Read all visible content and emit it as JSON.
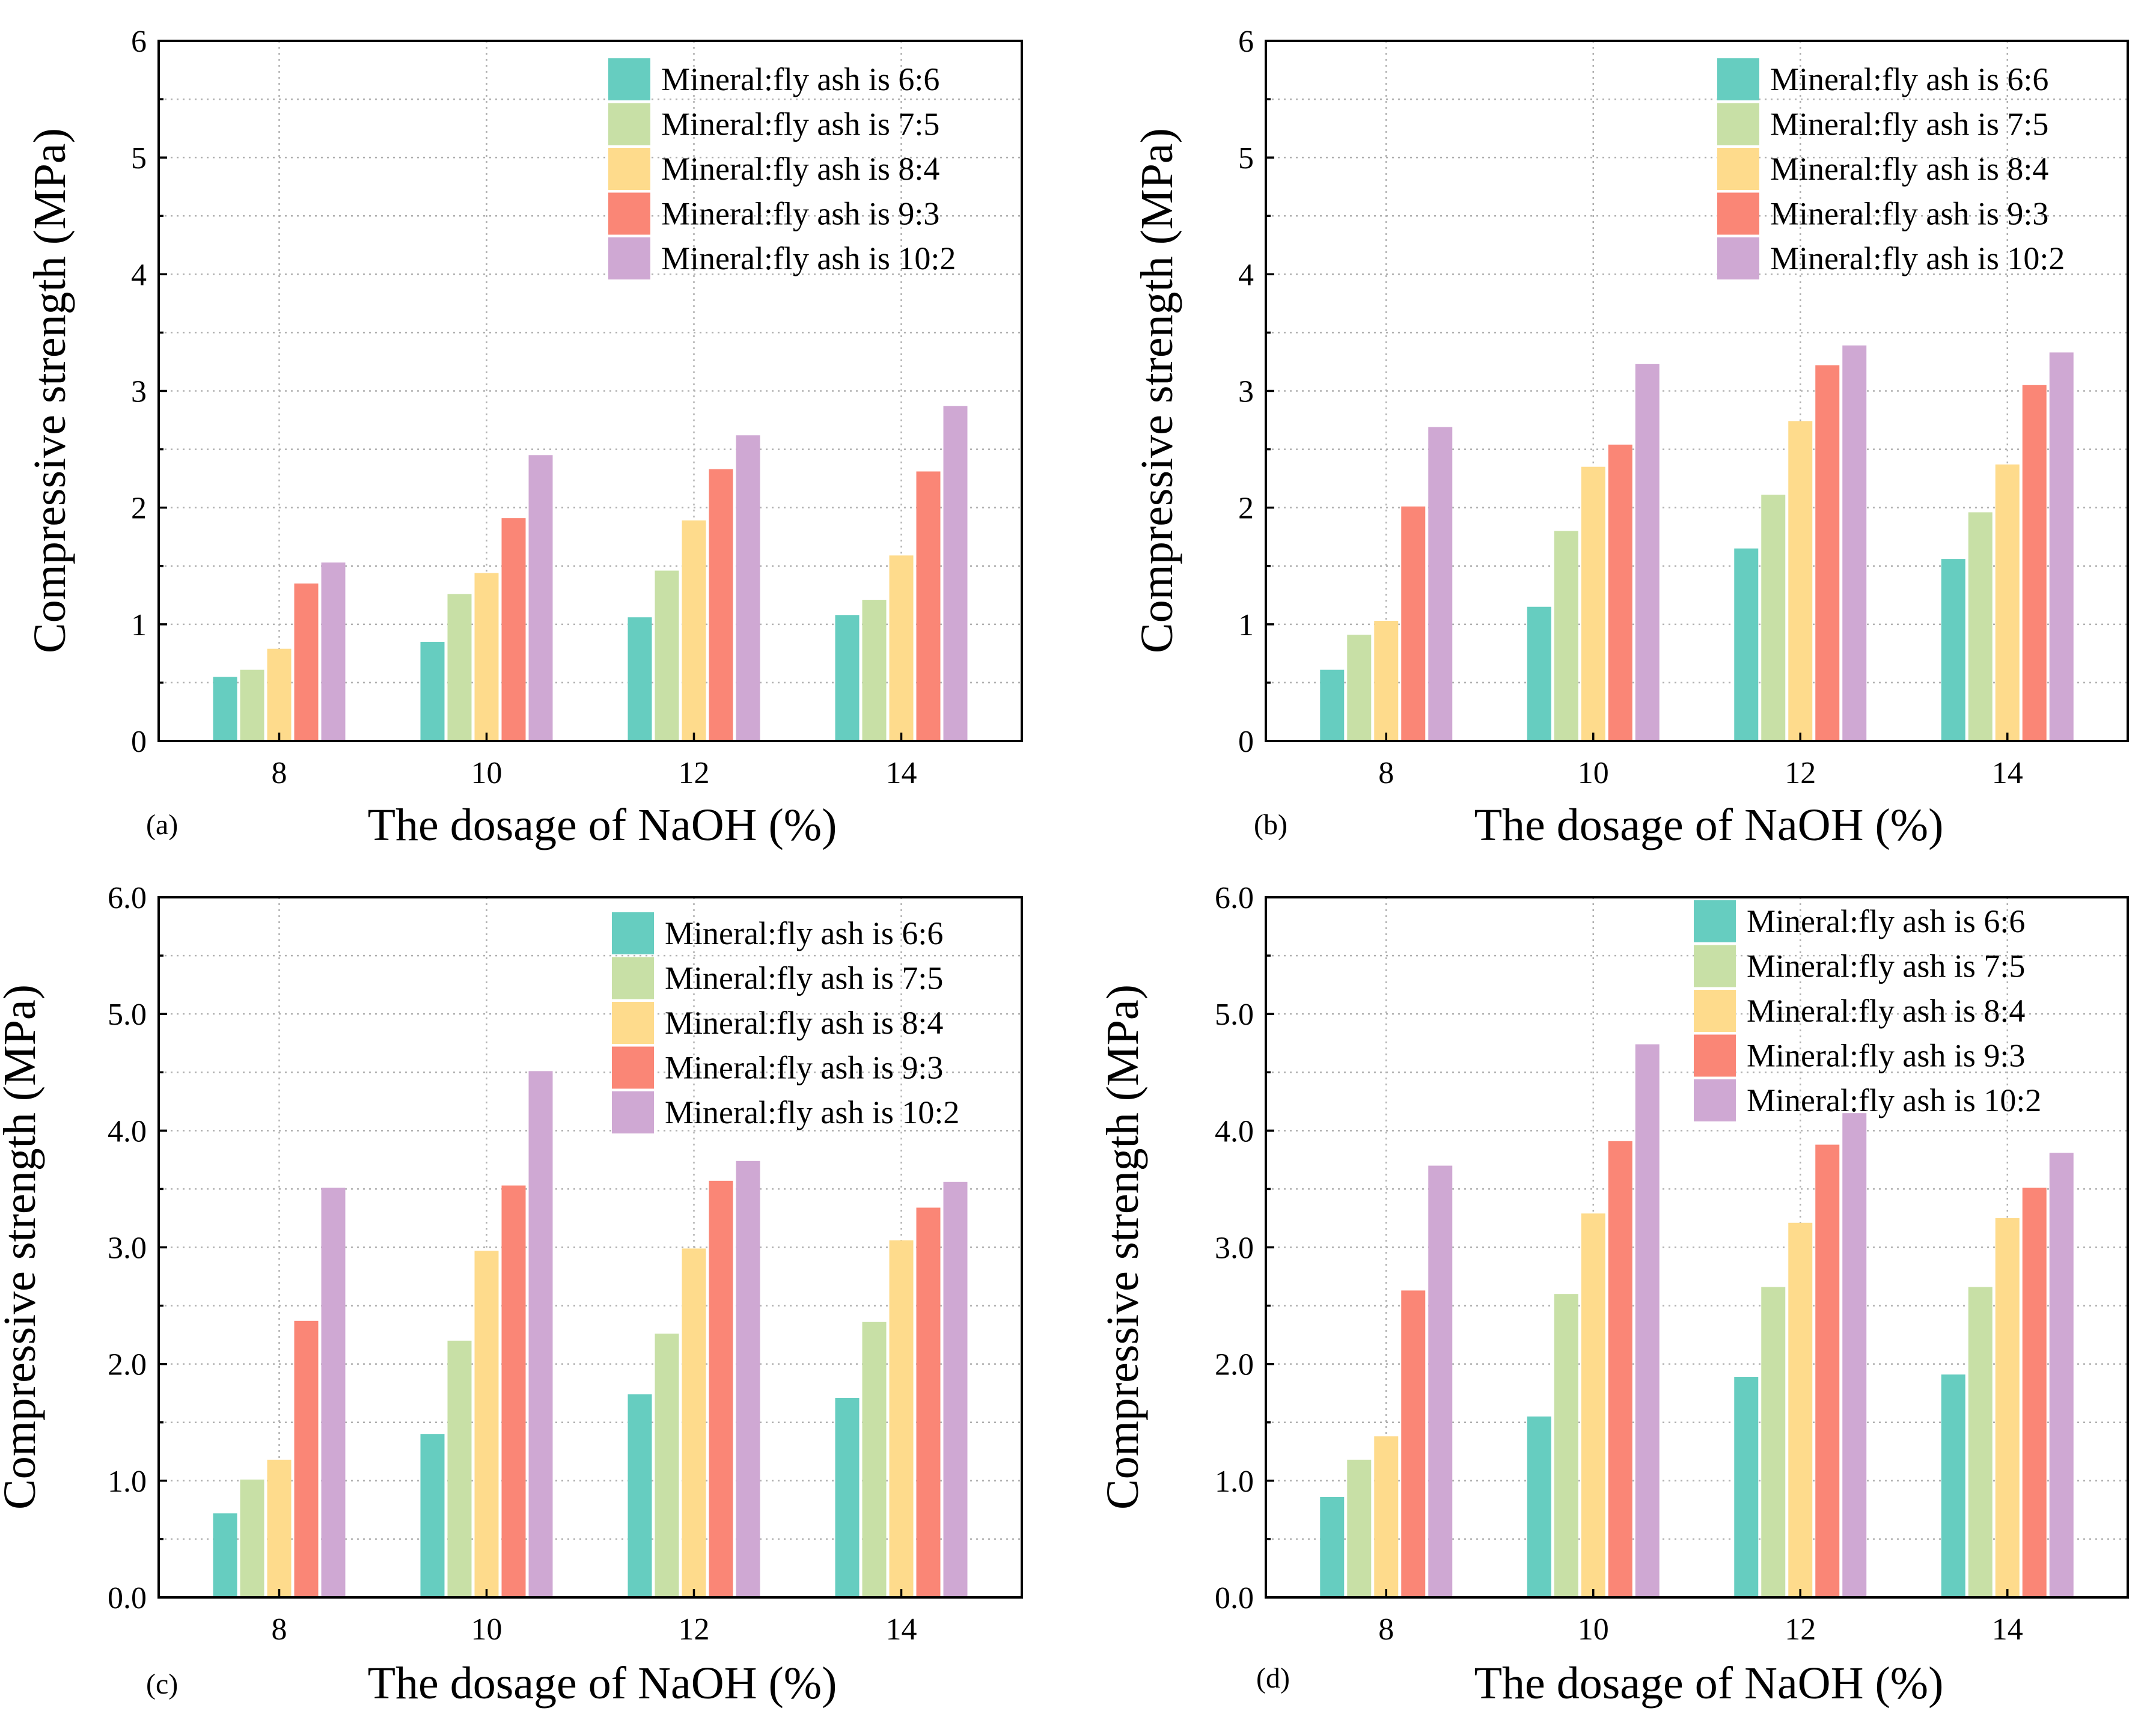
{
  "series_names": [
    "Mineral:fly ash is 6:6",
    "Mineral:fly ash is 7:5",
    "Mineral:fly ash is 8:4",
    "Mineral:fly ash is 9:3",
    "Mineral:fly ash is 10:2"
  ],
  "series_colors": [
    "#66cdc0",
    "#c8e0a6",
    "#fedb8c",
    "#fa8676",
    "#cfa8d3"
  ],
  "chart_data": [
    {
      "type": "bar",
      "panel_label": "(a)",
      "xlabel": "The dosage of NaOH (%)",
      "ylabel": "Compressive strength (MPa)",
      "categories": [
        "8",
        "10",
        "12",
        "14"
      ],
      "ylim": [
        0,
        6
      ],
      "yticks": [
        "0",
        "1",
        "2",
        "3",
        "4",
        "5",
        "6"
      ],
      "grid": true,
      "legend_position": "top-right",
      "series": [
        {
          "name": "Mineral:fly ash is 6:6",
          "values": [
            0.55,
            0.85,
            1.06,
            1.08
          ]
        },
        {
          "name": "Mineral:fly ash is 7:5",
          "values": [
            0.61,
            1.26,
            1.46,
            1.21
          ]
        },
        {
          "name": "Mineral:fly ash is 8:4",
          "values": [
            0.79,
            1.44,
            1.89,
            1.59
          ]
        },
        {
          "name": "Mineral:fly ash is 9:3",
          "values": [
            1.35,
            1.91,
            2.33,
            2.31
          ]
        },
        {
          "name": "Mineral:fly ash is 10:2",
          "values": [
            1.53,
            2.45,
            2.62,
            2.87
          ]
        }
      ]
    },
    {
      "type": "bar",
      "panel_label": "(b)",
      "xlabel": "The dosage of NaOH (%)",
      "ylabel": "Compressive strength (MPa)",
      "categories": [
        "8",
        "10",
        "12",
        "14"
      ],
      "ylim": [
        0,
        6
      ],
      "yticks": [
        "0",
        "1",
        "2",
        "3",
        "4",
        "5",
        "6"
      ],
      "grid": true,
      "legend_position": "top-right",
      "series": [
        {
          "name": "Mineral:fly ash is 6:6",
          "values": [
            0.61,
            1.15,
            1.65,
            1.56
          ]
        },
        {
          "name": "Mineral:fly ash is 7:5",
          "values": [
            0.91,
            1.8,
            2.11,
            1.96
          ]
        },
        {
          "name": "Mineral:fly ash is 8:4",
          "values": [
            1.03,
            2.35,
            2.74,
            2.37
          ]
        },
        {
          "name": "Mineral:fly ash is 9:3",
          "values": [
            2.01,
            2.54,
            3.22,
            3.05
          ]
        },
        {
          "name": "Mineral:fly ash is 10:2",
          "values": [
            2.69,
            3.23,
            3.39,
            3.33
          ]
        }
      ]
    },
    {
      "type": "bar",
      "panel_label": "(c)",
      "xlabel": "The dosage of NaOH (%)",
      "ylabel": "Compressive strength (MPa)",
      "categories": [
        "8",
        "10",
        "12",
        "14"
      ],
      "ylim": [
        0,
        6
      ],
      "yticks": [
        "0.0",
        "1.0",
        "2.0",
        "3.0",
        "4.0",
        "5.0",
        "6.0"
      ],
      "grid": true,
      "legend_position": "top-right",
      "series": [
        {
          "name": "Mineral:fly ash is 6:6",
          "values": [
            0.72,
            1.4,
            1.74,
            1.71
          ]
        },
        {
          "name": "Mineral:fly ash is 7:5",
          "values": [
            1.01,
            2.2,
            2.26,
            2.36
          ]
        },
        {
          "name": "Mineral:fly ash is 8:4",
          "values": [
            1.18,
            2.97,
            2.99,
            3.06
          ]
        },
        {
          "name": "Mineral:fly ash is 9:3",
          "values": [
            2.37,
            3.53,
            3.57,
            3.34
          ]
        },
        {
          "name": "Mineral:fly ash is 10:2",
          "values": [
            3.51,
            4.51,
            3.74,
            3.56
          ]
        }
      ]
    },
    {
      "type": "bar",
      "panel_label": "(d)",
      "xlabel": "The dosage of NaOH (%)",
      "ylabel": "Compressive strength (MPa)",
      "categories": [
        "8",
        "10",
        "12",
        "14"
      ],
      "ylim": [
        0,
        6
      ],
      "yticks": [
        "0.0",
        "1.0",
        "2.0",
        "3.0",
        "4.0",
        "5.0",
        "6.0"
      ],
      "grid": true,
      "legend_position": "top-right",
      "series": [
        {
          "name": "Mineral:fly ash is 6:6",
          "values": [
            0.86,
            1.55,
            1.89,
            1.91
          ]
        },
        {
          "name": "Mineral:fly ash is 7:5",
          "values": [
            1.18,
            2.6,
            2.66,
            2.66
          ]
        },
        {
          "name": "Mineral:fly ash is 8:4",
          "values": [
            1.38,
            3.29,
            3.21,
            3.25
          ]
        },
        {
          "name": "Mineral:fly ash is 9:3",
          "values": [
            2.63,
            3.91,
            3.88,
            3.51
          ]
        },
        {
          "name": "Mineral:fly ash is 10:2",
          "values": [
            3.7,
            4.74,
            4.15,
            3.81
          ]
        }
      ]
    }
  ]
}
